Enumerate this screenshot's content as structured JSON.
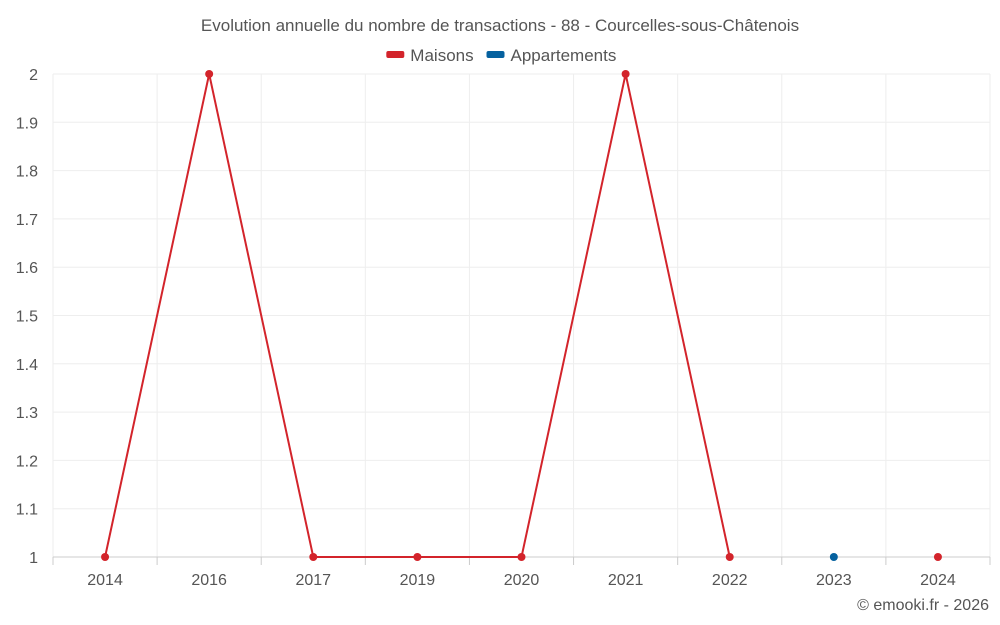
{
  "chart_data": {
    "type": "line",
    "title": "Evolution annuelle du nombre de transactions - 88 - Courcelles-sous-Châtenois",
    "categories": [
      "2014",
      "2016",
      "2017",
      "2019",
      "2020",
      "2021",
      "2022",
      "2023",
      "2024"
    ],
    "ylim": [
      1,
      2
    ],
    "yticks": [
      "1",
      "1.1",
      "1.2",
      "1.3",
      "1.4",
      "1.5",
      "1.6",
      "1.7",
      "1.8",
      "1.9",
      "2"
    ],
    "grid": true,
    "legend_position": "top-center",
    "series": [
      {
        "name": "Maisons",
        "color": "#d3242b",
        "values": [
          1,
          2,
          1,
          1,
          1,
          2,
          1,
          null,
          1
        ]
      },
      {
        "name": "Appartements",
        "color": "#05619f",
        "values": [
          null,
          null,
          null,
          null,
          null,
          null,
          null,
          1,
          null
        ]
      }
    ],
    "xlabel": "",
    "ylabel": ""
  },
  "credit": "© emooki.fr - 2026"
}
